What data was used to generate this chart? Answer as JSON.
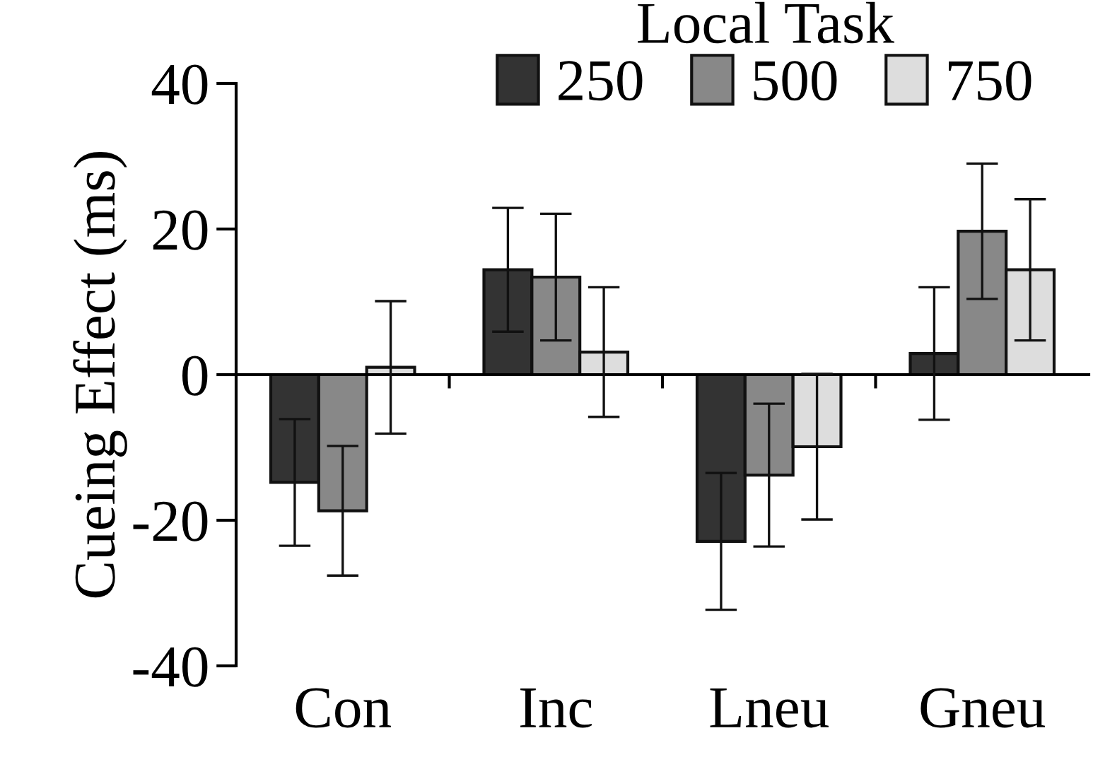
{
  "chart_data": {
    "type": "bar",
    "ylabel": "Cueing Effect (ms)",
    "legend_title": "Local Task",
    "legend": "top right",
    "categories": [
      "Con",
      "Inc",
      "Lneu",
      "Gneu"
    ],
    "ylim": [
      -40,
      40
    ],
    "yticks": [
      -40,
      -20,
      0,
      20,
      40
    ],
    "series": [
      {
        "name": "250",
        "color": "#333333",
        "values": [
          -14.8,
          14.4,
          -22.9,
          2.9
        ],
        "errors": [
          8.7,
          8.5,
          9.4,
          9.1
        ]
      },
      {
        "name": "500",
        "color": "#888888",
        "values": [
          -18.7,
          13.4,
          -13.8,
          19.7
        ],
        "errors": [
          8.9,
          8.7,
          9.8,
          9.3
        ]
      },
      {
        "name": "750",
        "color": "#dddddd",
        "values": [
          1.0,
          3.1,
          -9.9,
          14.4
        ],
        "errors": [
          9.1,
          8.9,
          10.0,
          9.7
        ]
      }
    ]
  }
}
